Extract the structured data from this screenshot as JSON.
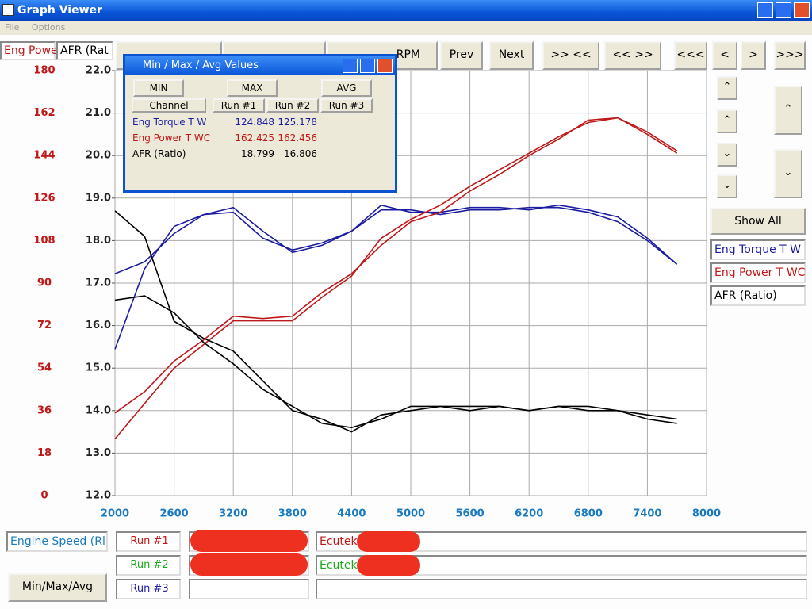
{
  "window": {
    "title": "Graph Viewer",
    "menu": [
      "File",
      "Options"
    ]
  },
  "toolbar": {
    "tabs": [
      "Eng Powe",
      "AFR (Rat"
    ],
    "buttons": [
      "RPM",
      "Prev",
      "Next",
      ">> <<",
      "<< >>",
      "<<<",
      "<",
      ">",
      ">>>"
    ]
  },
  "chart_data": {
    "type": "line",
    "x_label": "Engine Speed (Rl",
    "x": [
      2000,
      2300,
      2600,
      2900,
      3200,
      3500,
      3800,
      4100,
      4400,
      4700,
      5000,
      5300,
      5600,
      5900,
      6200,
      6500,
      6800,
      7100,
      7400,
      7700
    ],
    "xlim": [
      2000,
      8000
    ],
    "xticks": [
      2000,
      2600,
      3200,
      3800,
      4400,
      5000,
      5600,
      6200,
      6800,
      7400,
      8000
    ],
    "ylim": [
      0,
      180
    ],
    "yticks": [
      0,
      18,
      36,
      54,
      72,
      90,
      108,
      126,
      144,
      162,
      180
    ],
    "y2lim": [
      12,
      22
    ],
    "y2ticks": [
      {
        "value": 12,
        "label": "12.0"
      },
      {
        "value": 13,
        "label": "13.0"
      },
      {
        "value": 14,
        "label": "14.0"
      },
      {
        "value": 15,
        "label": "15.0"
      },
      {
        "value": 16,
        "label": "16.0"
      },
      {
        "value": 17,
        "label": "17.0"
      },
      {
        "value": 18,
        "label": "18.0"
      },
      {
        "value": 19,
        "label": "19.0"
      },
      {
        "value": 20,
        "label": "20.0"
      },
      {
        "value": 21,
        "label": "21.0"
      },
      {
        "value": 22,
        "label": "22.0"
      }
    ],
    "grid": true,
    "series": [
      {
        "name": "Eng Torque T W",
        "color": "#1c1ca0",
        "axis": "y",
        "runs": [
          [
            62,
            96,
            114,
            119,
            122,
            112,
            103,
            106,
            112,
            121,
            121,
            119,
            121,
            121,
            122,
            122,
            120,
            116,
            108,
            98
          ],
          [
            94,
            99,
            111,
            119,
            120,
            109,
            104,
            107,
            112,
            123,
            120,
            120,
            122,
            122,
            121,
            123,
            121,
            118,
            109,
            98
          ]
        ]
      },
      {
        "name": "Eng Power T WC",
        "color": "#c01818",
        "axis": "y",
        "runs": [
          [
            35,
            44,
            57,
            66,
            76,
            75,
            76,
            86,
            94,
            106,
            116,
            120,
            129,
            136,
            144,
            151,
            159,
            160,
            154,
            146
          ],
          [
            24,
            39,
            54,
            64,
            74,
            74,
            74,
            84,
            93,
            109,
            117,
            123,
            131,
            138,
            145,
            152,
            158,
            160,
            153,
            145
          ]
        ]
      },
      {
        "name": "AFR (Ratio)",
        "color": "#000000",
        "axis": "y2",
        "runs": [
          [
            18.7,
            18.1,
            16.1,
            15.7,
            15.4,
            14.7,
            14.0,
            13.8,
            13.5,
            13.9,
            14.0,
            14.1,
            14.1,
            14.1,
            14.0,
            14.1,
            14.1,
            14.0,
            13.9,
            13.8
          ],
          [
            16.6,
            16.7,
            16.3,
            15.6,
            15.1,
            14.5,
            14.1,
            13.7,
            13.6,
            13.8,
            14.1,
            14.1,
            14.0,
            14.1,
            14.0,
            14.1,
            14.0,
            14.0,
            13.8,
            13.7
          ]
        ]
      }
    ]
  },
  "side_panel": {
    "show_all": "Show All"
  },
  "dialog": {
    "title": "Min / Max / Avg Values",
    "buttons": [
      "MIN",
      "MAX",
      "AVG"
    ],
    "headers": [
      "Channel",
      "Run #1",
      "Run #2",
      "Run #3"
    ],
    "rows": [
      [
        "Eng Torque T W",
        124.848,
        125.178
      ],
      [
        "Eng Power T WC",
        162.425,
        162.456
      ],
      [
        "AFR (Ratio)",
        18.799,
        16.806
      ]
    ]
  },
  "bottom": {
    "runs": [
      "Run #1",
      "Run #2",
      "Run #3"
    ],
    "sources": [
      "Ecutek",
      "Ecutek"
    ],
    "button": "Min/Max/Avg"
  }
}
